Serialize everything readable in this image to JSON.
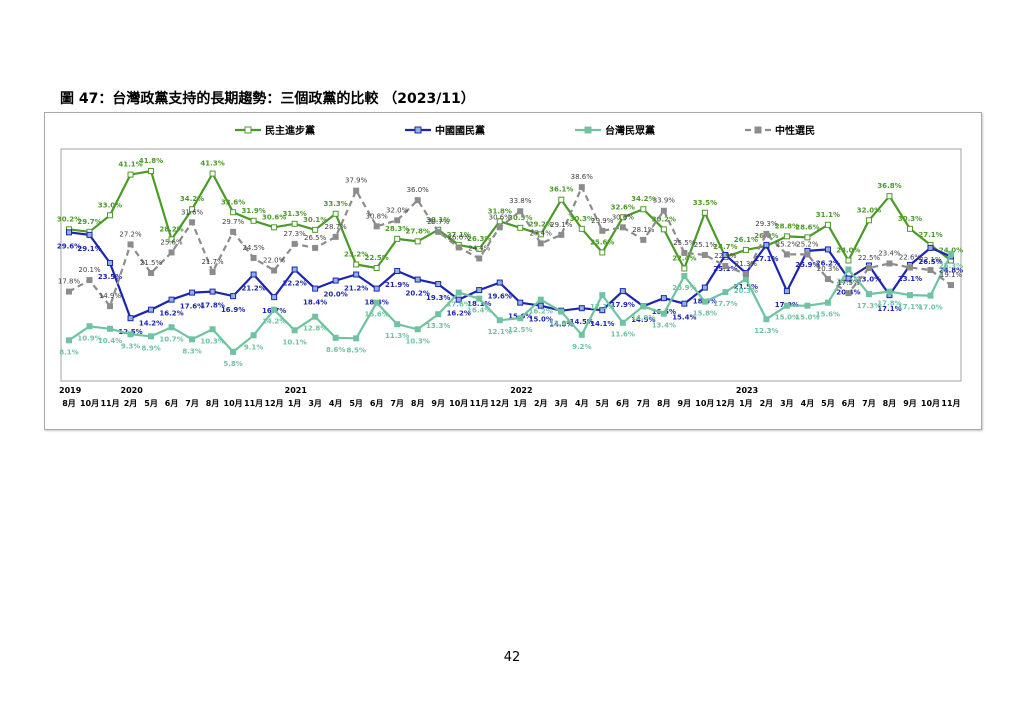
{
  "page": {
    "title": "圖 47：台灣政黨支持的長期趨勢：三個政黨的比較 （2023/11）",
    "page_number": "42"
  },
  "chart_data": {
    "type": "line",
    "title": "",
    "xlabel": "",
    "ylabel": "",
    "ylim": [
      0,
      45
    ],
    "grid": false,
    "legend_position": "top",
    "categories": [
      "8月",
      "10月",
      "11月",
      "2月",
      "5月",
      "6月",
      "7月",
      "8月",
      "10月",
      "11月",
      "12月",
      "1月",
      "3月",
      "4月",
      "5月",
      "6月",
      "7月",
      "8月",
      "9月",
      "10月",
      "11月",
      "12月",
      "1月",
      "2月",
      "3月",
      "4月",
      "5月",
      "6月",
      "7月",
      "8月",
      "9月",
      "10月",
      "12月",
      "1月",
      "2月",
      "3月",
      "4月",
      "5月",
      "6月",
      "7月",
      "8月",
      "9月",
      "10月",
      "11月"
    ],
    "year_labels": [
      {
        "label": "2019",
        "index": 0
      },
      {
        "label": "2020",
        "index": 3
      },
      {
        "label": "2021",
        "index": 11
      },
      {
        "label": "2022",
        "index": 22
      },
      {
        "label": "2023",
        "index": 33
      }
    ],
    "series": [
      {
        "name": "民主進步黨",
        "color": "#4a9a27",
        "dash": "",
        "marker": "square-open",
        "marker_fill": "#4a9a27",
        "values": [
          30.2,
          29.7,
          33.0,
          41.1,
          41.8,
          28.2,
          34.2,
          41.3,
          33.6,
          31.9,
          30.6,
          31.3,
          30.1,
          33.3,
          23.2,
          22.5,
          28.3,
          27.8,
          30.1,
          27.1,
          26.3,
          31.8,
          30.5,
          29.2,
          36.1,
          30.3,
          25.6,
          32.6,
          34.2,
          30.2,
          22.4,
          33.5,
          24.7,
          26.1,
          26.9,
          28.8,
          28.6,
          31.1,
          24.0,
          32.0,
          36.8,
          30.3,
          27.1,
          24.0
        ]
      },
      {
        "name": "中國國民黨",
        "color": "#1c25b0",
        "dash": "",
        "marker": "square",
        "marker_fill": "#8fb4e3",
        "values": [
          29.6,
          29.1,
          23.5,
          12.5,
          14.2,
          16.2,
          17.6,
          17.8,
          16.9,
          21.2,
          16.7,
          22.2,
          18.4,
          20.0,
          21.2,
          18.4,
          21.9,
          20.2,
          19.3,
          16.2,
          18.1,
          19.6,
          15.6,
          15.0,
          14.0,
          14.5,
          14.1,
          17.9,
          14.9,
          16.5,
          15.4,
          18.6,
          25.1,
          21.5,
          27.1,
          17.9,
          25.9,
          26.2,
          20.4,
          23.0,
          17.1,
          23.1,
          26.5,
          24.8
        ]
      },
      {
        "name": "台灣民眾黨",
        "color": "#6fc3a0",
        "dash": "",
        "marker": "square",
        "marker_fill": "#6fc3a0",
        "values": [
          8.1,
          10.9,
          10.4,
          9.3,
          8.9,
          10.7,
          8.3,
          10.3,
          5.8,
          9.1,
          14.2,
          10.1,
          12.8,
          8.6,
          8.5,
          15.6,
          11.3,
          10.3,
          13.3,
          17.6,
          16.4,
          12.1,
          12.5,
          16.2,
          13.8,
          9.2,
          17.1,
          11.6,
          14.9,
          13.4,
          20.9,
          15.8,
          17.7,
          20.3,
          12.3,
          15.0,
          15.0,
          15.6,
          22.2,
          17.3,
          17.8,
          17.1,
          17.0,
          25.3
        ]
      },
      {
        "name": "中性選民",
        "color": "#8c8c8c",
        "dash": "6,4",
        "marker": "square",
        "marker_fill": "#8c8c8c",
        "values": [
          17.8,
          20.1,
          14.9,
          27.2,
          21.5,
          25.6,
          31.6,
          21.7,
          29.7,
          24.5,
          22.0,
          27.3,
          26.5,
          28.7,
          37.9,
          30.8,
          32.0,
          36.0,
          29.7,
          26.6,
          24.4,
          30.6,
          33.8,
          27.4,
          29.1,
          38.6,
          29.9,
          30.6,
          28.1,
          33.9,
          25.5,
          25.1,
          22.9,
          21.3,
          29.3,
          25.2,
          25.2,
          20.3,
          17.5,
          22.5,
          23.4,
          22.6,
          22.1,
          19.1
        ]
      }
    ],
    "data_labels": {
      "民主進步黨": [
        "30.2%",
        "29.7%",
        "33.0%",
        "41.1%",
        "41.8%",
        "28.2%",
        "34.2%",
        "41.3%",
        "33.6%",
        "31.9%",
        "30.6%",
        "31.3%",
        "30.1%",
        "33.3%",
        "23.2%",
        "22.5%",
        "28.3%",
        "27.8%",
        "30.1%",
        "27.1%",
        "26.3%",
        "31.8%",
        "30.5%",
        "29.2%",
        "36.1%",
        "30.3%",
        "25.6%",
        "32.6%",
        "34.2%",
        "30.2%",
        "22.4%",
        "33.5%",
        "24.7%",
        "26.1%",
        "26.9%",
        "28.8%",
        "28.6%",
        "31.1%",
        "24.0%",
        "32.0%",
        "36.8%",
        "30.3%",
        "27.1%",
        "24.0%"
      ],
      "中國國民黨": [
        "29.6%",
        "29.1%",
        "23.5%",
        "12.5%",
        "14.2%",
        "16.2%",
        "17.6%",
        "17.8%",
        "16.9%",
        "21.2%",
        "16.7%",
        "22.2%",
        "18.4%",
        "20.0%",
        "21.2%",
        "18.4%",
        "21.9%",
        "20.2%",
        "19.3%",
        "16.2%",
        "18.1%",
        "19.6%",
        "15.6%",
        "15.0%",
        "14.0%",
        "14.5%",
        "14.1%",
        "17.9%",
        "14.9%",
        "16.5%",
        "15.4%",
        "18.6%",
        "25.1%",
        "21.5%",
        "27.1%",
        "17.9%",
        "25.9%",
        "26.2%",
        "20.4%",
        "23.0%",
        "17.1%",
        "23.1%",
        "26.5%",
        "24.8%"
      ],
      "台灣民眾黨": [
        "8.1%",
        "10.9%",
        "10.4%",
        "9.3%",
        "8.9%",
        "10.7%",
        "8.3%",
        "10.3%",
        "5.8%",
        "9.1%",
        "14.2%",
        "10.1%",
        "12.8%",
        "8.6%",
        "8.5%",
        "15.6%",
        "11.3%",
        "10.3%",
        "13.3%",
        "17.6%",
        "16.4%",
        "12.1%",
        "12.5%",
        "16.2%",
        "13.8%",
        "9.2%",
        "17.1%",
        "11.6%",
        "14.9%",
        "13.4%",
        "20.9%",
        "15.8%",
        "17.7%",
        "20.3%",
        "12.3%",
        "15.0%",
        "15.0%",
        "15.6%",
        "22.2%",
        "17.3%",
        "17.8%",
        "17.1%",
        "17.0%",
        "25.3%"
      ],
      "中性選民": [
        "17.8%",
        "20.1%",
        "14.9%",
        "27.2%",
        "21.5%",
        "25.6%",
        "31.6%",
        "21.7%",
        "29.7%",
        "24.5%",
        "22.0%",
        "27.3%",
        "26.5%",
        "28.7%",
        "37.9%",
        "30.8%",
        "32.0%",
        "36.0%",
        "29.7%",
        "26.6%",
        "24.4%",
        "30.6%",
        "33.8%",
        "27.4%",
        "29.1%",
        "38.6%",
        "29.9%",
        "30.6%",
        "28.1%",
        "33.9%",
        "25.5%",
        "25.1%",
        "22.9%",
        "21.3%",
        "29.3%",
        "25.2%",
        "25.2%",
        "20.3%",
        "17.5%",
        "22.5%",
        "23.4%",
        "22.6%",
        "22.1%",
        "19.1%"
      ]
    }
  }
}
